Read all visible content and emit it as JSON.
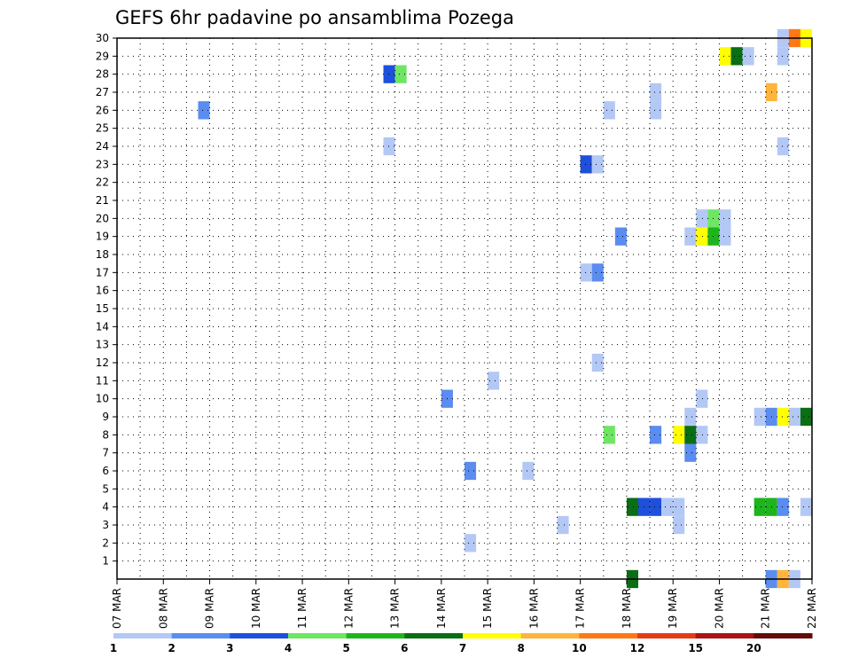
{
  "chart_data": {
    "type": "heatmap",
    "title": "GEFS 6hr padavine po ansamblima Pozega",
    "x_tick_labels": [
      "07 MAR",
      "08 MAR",
      "09 MAR",
      "10 MAR",
      "11 MAR",
      "12 MAR",
      "13 MAR",
      "14 MAR",
      "15 MAR",
      "16 MAR",
      "17 MAR",
      "18 MAR",
      "19 MAR",
      "20 MAR",
      "21 MAR",
      "22 MAR"
    ],
    "y_tick_labels": [
      "1",
      "2",
      "3",
      "4",
      "5",
      "6",
      "7",
      "8",
      "9",
      "10",
      "11",
      "12",
      "13",
      "14",
      "15",
      "16",
      "17",
      "18",
      "19",
      "20",
      "21",
      "22",
      "23",
      "24",
      "25",
      "26",
      "27",
      "28",
      "29",
      "30"
    ],
    "ylim": [
      0,
      30
    ],
    "grid": true,
    "legend": {
      "labels": [
        "1",
        "2",
        "3",
        "4",
        "5",
        "6",
        "7",
        "8",
        "10",
        "12",
        "15",
        "20"
      ],
      "colors": [
        "#b4c8f5",
        "#5b8cf0",
        "#1e50dc",
        "#6ee664",
        "#1eb41e",
        "#0a6e14",
        "#ffff00",
        "#ffb43c",
        "#ff7814",
        "#e63c14",
        "#aa1414",
        "#640a0a"
      ]
    },
    "cells": [
      {
        "member": 30,
        "day": 21.25,
        "color": "#b4c8f5"
      },
      {
        "member": 30,
        "day": 21.5,
        "color": "#ff7814"
      },
      {
        "member": 30,
        "day": 21.75,
        "color": "#ffff00"
      },
      {
        "member": 29,
        "day": 20.0,
        "color": "#ffff00"
      },
      {
        "member": 29,
        "day": 20.25,
        "color": "#0a6e14"
      },
      {
        "member": 29,
        "day": 20.5,
        "color": "#b4c8f5"
      },
      {
        "member": 29,
        "day": 21.25,
        "color": "#b4c8f5"
      },
      {
        "member": 28,
        "day": 12.75,
        "color": "#1e50dc"
      },
      {
        "member": 28,
        "day": 13.0,
        "color": "#6ee664"
      },
      {
        "member": 27,
        "day": 18.5,
        "color": "#b4c8f5"
      },
      {
        "member": 27,
        "day": 21.0,
        "color": "#ffb43c"
      },
      {
        "member": 26,
        "day": 8.75,
        "color": "#5b8cf0"
      },
      {
        "member": 26,
        "day": 17.5,
        "color": "#b4c8f5"
      },
      {
        "member": 26,
        "day": 18.5,
        "color": "#b4c8f5"
      },
      {
        "member": 24,
        "day": 12.75,
        "color": "#b4c8f5"
      },
      {
        "member": 24,
        "day": 21.25,
        "color": "#b4c8f5"
      },
      {
        "member": 23,
        "day": 17.0,
        "color": "#1e50dc"
      },
      {
        "member": 23,
        "day": 17.25,
        "color": "#b4c8f5"
      },
      {
        "member": 20,
        "day": 19.5,
        "color": "#b4c8f5"
      },
      {
        "member": 20,
        "day": 19.75,
        "color": "#6ee664"
      },
      {
        "member": 20,
        "day": 20.0,
        "color": "#b4c8f5"
      },
      {
        "member": 19,
        "day": 17.75,
        "color": "#5b8cf0"
      },
      {
        "member": 19,
        "day": 19.25,
        "color": "#b4c8f5"
      },
      {
        "member": 19,
        "day": 19.5,
        "color": "#ffff00"
      },
      {
        "member": 19,
        "day": 19.75,
        "color": "#1eb41e"
      },
      {
        "member": 19,
        "day": 20.0,
        "color": "#b4c8f5"
      },
      {
        "member": 17,
        "day": 17.0,
        "color": "#b4c8f5"
      },
      {
        "member": 17,
        "day": 17.25,
        "color": "#5b8cf0"
      },
      {
        "member": 12,
        "day": 17.25,
        "color": "#b4c8f5"
      },
      {
        "member": 11,
        "day": 15.0,
        "color": "#b4c8f5"
      },
      {
        "member": 10,
        "day": 14.0,
        "color": "#5b8cf0"
      },
      {
        "member": 10,
        "day": 19.5,
        "color": "#b4c8f5"
      },
      {
        "member": 9,
        "day": 19.25,
        "color": "#b4c8f5"
      },
      {
        "member": 9,
        "day": 20.75,
        "color": "#b4c8f5"
      },
      {
        "member": 9,
        "day": 21.0,
        "color": "#5b8cf0"
      },
      {
        "member": 9,
        "day": 21.25,
        "color": "#ffff00"
      },
      {
        "member": 9,
        "day": 21.5,
        "color": "#b4c8f5"
      },
      {
        "member": 9,
        "day": 21.75,
        "color": "#0a6e14"
      },
      {
        "member": 8,
        "day": 17.5,
        "color": "#6ee664"
      },
      {
        "member": 8,
        "day": 18.5,
        "color": "#5b8cf0"
      },
      {
        "member": 8,
        "day": 19.0,
        "color": "#ffff00"
      },
      {
        "member": 8,
        "day": 19.25,
        "color": "#0a6e14"
      },
      {
        "member": 8,
        "day": 19.5,
        "color": "#b4c8f5"
      },
      {
        "member": 7,
        "day": 19.25,
        "color": "#5b8cf0"
      },
      {
        "member": 6,
        "day": 14.5,
        "color": "#5b8cf0"
      },
      {
        "member": 6,
        "day": 15.75,
        "color": "#b4c8f5"
      },
      {
        "member": 4,
        "day": 18.0,
        "color": "#0a6e14"
      },
      {
        "member": 4,
        "day": 18.25,
        "color": "#1e50dc"
      },
      {
        "member": 4,
        "day": 18.5,
        "color": "#1e50dc"
      },
      {
        "member": 4,
        "day": 18.75,
        "color": "#b4c8f5"
      },
      {
        "member": 4,
        "day": 19.0,
        "color": "#b4c8f5"
      },
      {
        "member": 4,
        "day": 20.75,
        "color": "#1eb41e"
      },
      {
        "member": 4,
        "day": 21.0,
        "color": "#1eb41e"
      },
      {
        "member": 4,
        "day": 21.25,
        "color": "#5b8cf0"
      },
      {
        "member": 4,
        "day": 21.75,
        "color": "#b4c8f5"
      },
      {
        "member": 3,
        "day": 16.5,
        "color": "#b4c8f5"
      },
      {
        "member": 3,
        "day": 19.0,
        "color": "#b4c8f5"
      },
      {
        "member": 2,
        "day": 14.5,
        "color": "#b4c8f5"
      },
      {
        "member": 0,
        "day": 18.0,
        "color": "#0a6e14"
      },
      {
        "member": 0,
        "day": 21.0,
        "color": "#5b8cf0"
      },
      {
        "member": 0,
        "day": 21.25,
        "color": "#ffb43c"
      },
      {
        "member": 0,
        "day": 21.5,
        "color": "#b4c8f5"
      }
    ]
  }
}
